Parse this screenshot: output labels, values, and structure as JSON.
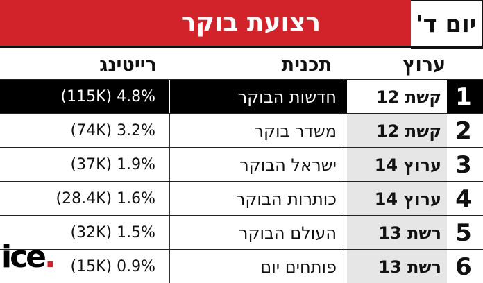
{
  "header": {
    "title": "רצועת בוקר",
    "day": "יום ד'"
  },
  "columns": {
    "channel": "ערוץ",
    "program": "תכנית",
    "rating": "רייטינג"
  },
  "rows": [
    {
      "rank": "1",
      "channel": "קשת 12",
      "program": "חדשות הבוקר",
      "rating": "(115K) 4.8%",
      "highlight": true
    },
    {
      "rank": "2",
      "channel": "קשת 12",
      "program": "משדר בוקר",
      "rating": "(74K) 3.2%"
    },
    {
      "rank": "3",
      "channel": "ערוץ 14",
      "program": "ישראל הבוקר",
      "rating": "(37K) 1.9%"
    },
    {
      "rank": "4",
      "channel": "ערוץ 14",
      "program": "כותרות הבוקר",
      "rating": "(28.4K) 1.6%"
    },
    {
      "rank": "5",
      "channel": "רשת 13",
      "program": "העולם הבוקר",
      "rating": "(32K) 1.5%"
    },
    {
      "rank": "6",
      "channel": "רשת 13",
      "program": "פותחים יום",
      "rating": "(15K) 0.9%"
    }
  ],
  "logo": {
    "text": "ice",
    "dot": "."
  },
  "colors": {
    "accent": "#d2232a",
    "highlight_row": "#000000",
    "channel_cell": "#e6e6e6"
  }
}
